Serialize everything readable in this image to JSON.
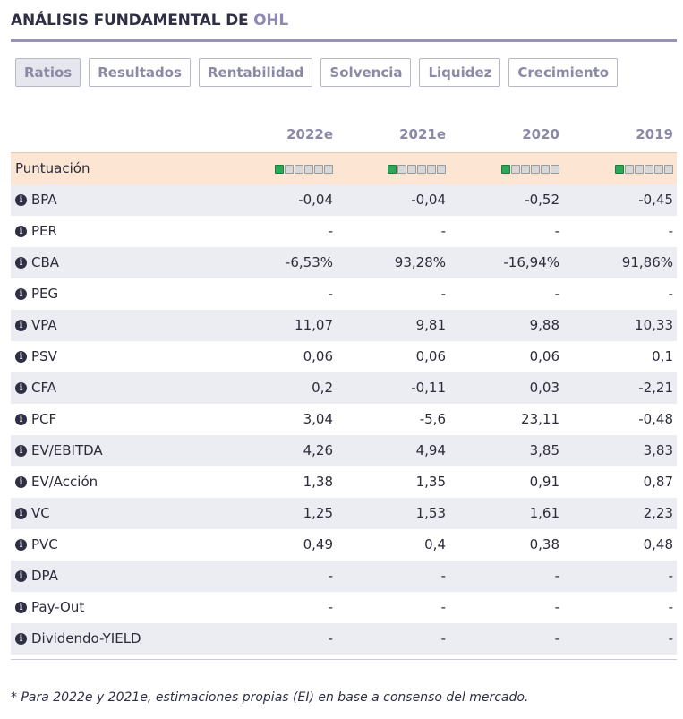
{
  "header": {
    "title": "ANÁLISIS FUNDAMENTAL DE ",
    "company": "OHL"
  },
  "tabs": [
    "Ratios",
    "Resultados",
    "Rentabilidad",
    "Solvencia",
    "Liquidez",
    "Crecimiento"
  ],
  "table": {
    "columns": [
      "2022e",
      "2021e",
      "2020",
      "2019"
    ],
    "score_row": {
      "label": "Puntuación",
      "scores": [
        1,
        1,
        1,
        1
      ],
      "max": 6
    },
    "rows": [
      [
        "BPA",
        "-0,04",
        "-0,04",
        "-0,52",
        "-0,45"
      ],
      [
        "PER",
        "-",
        "-",
        "-",
        "-"
      ],
      [
        "CBA",
        "-6,53%",
        "93,28%",
        "-16,94%",
        "91,86%"
      ],
      [
        "PEG",
        "-",
        "-",
        "-",
        "-"
      ],
      [
        "VPA",
        "11,07",
        "9,81",
        "9,88",
        "10,33"
      ],
      [
        "PSV",
        "0,06",
        "0,06",
        "0,06",
        "0,1"
      ],
      [
        "CFA",
        "0,2",
        "-0,11",
        "0,03",
        "-2,21"
      ],
      [
        "PCF",
        "3,04",
        "-5,6",
        "23,11",
        "-0,48"
      ],
      [
        "EV/EBITDA",
        "4,26",
        "4,94",
        "3,85",
        "3,83"
      ],
      [
        "EV/Acción",
        "1,38",
        "1,35",
        "0,91",
        "0,87"
      ],
      [
        "VC",
        "1,25",
        "1,53",
        "1,61",
        "2,23"
      ],
      [
        "PVC",
        "0,49",
        "0,4",
        "0,38",
        "0,48"
      ],
      [
        "DPA",
        "-",
        "-",
        "-",
        "-"
      ],
      [
        "Pay-Out",
        "-",
        "-",
        "-",
        "-"
      ],
      [
        "Dividendo-YIELD",
        "-",
        "-",
        "-",
        "-"
      ]
    ]
  },
  "footnote": "* Para 2022e y 2021e, estimaciones propias (EI) en base a consenso del mercado."
}
